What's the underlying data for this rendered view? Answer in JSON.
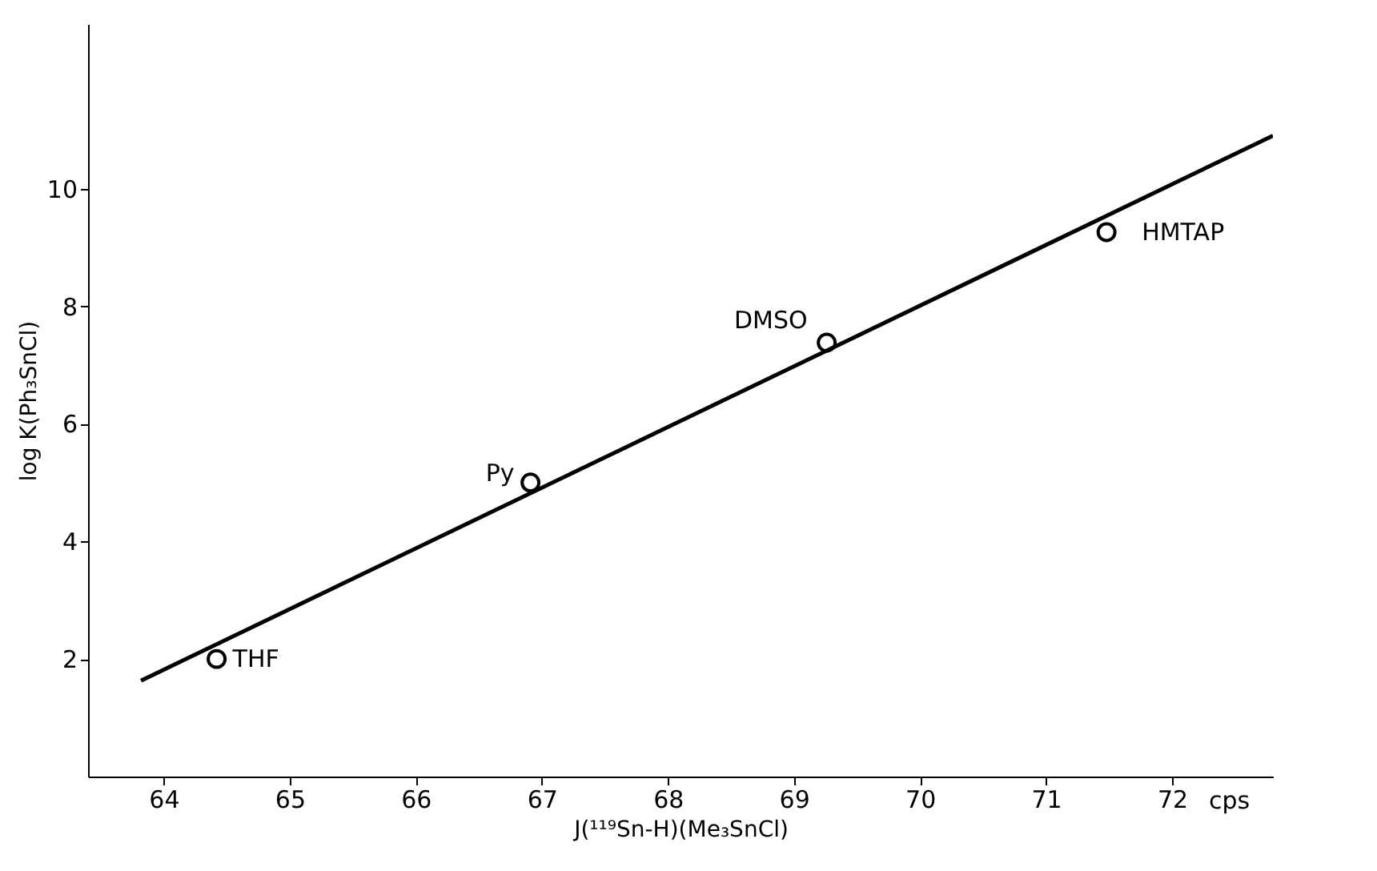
{
  "chart_data": {
    "type": "scatter",
    "xlabel": "J(¹¹⁹Sn-H)(Me₃SnCl)",
    "ylabel": "log K(Ph₃SnCl)",
    "xlim": [
      63.4,
      72.8
    ],
    "xticks": [
      64,
      65,
      66,
      67,
      68,
      69,
      70,
      71,
      72
    ],
    "ylim": [
      0,
      12.8
    ],
    "yticks": [
      2,
      4,
      6,
      8,
      10
    ],
    "grid": false,
    "marker": "circle",
    "series": [
      {
        "color": "#000000",
        "x": [
          64.42,
          66.91,
          69.26,
          71.48
        ],
        "values": [
          2.0,
          5.0,
          7.38,
          9.26
        ]
      },
      {
        "type": "line",
        "color": "#000000",
        "x": [
          63.82,
          72.8
        ],
        "values": [
          1.63,
          10.9
        ],
        "marker": "none"
      }
    ],
    "annotations": [
      {
        "text": "THF",
        "x": 64.42,
        "y": 2.0
      },
      {
        "text": "Py",
        "x": 66.91,
        "y": 5.0
      },
      {
        "text": "DMSO",
        "x": 69.26,
        "y": 7.38
      },
      {
        "text": "HMTAP",
        "x": 71.48,
        "y": 9.26
      },
      "cps"
    ]
  }
}
